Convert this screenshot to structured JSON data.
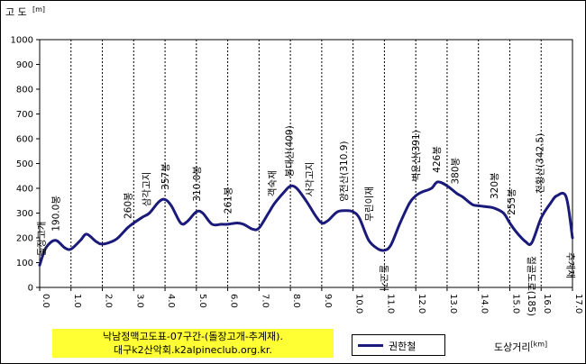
{
  "chart_data": {
    "type": "line",
    "ylabel": "고 도",
    "yunit": "[m]",
    "xlabel": "도상거리",
    "xunit": "[km]",
    "ylim": [
      0,
      1000
    ],
    "xlim": [
      0,
      17
    ],
    "yticks": [
      "0",
      "100",
      "200",
      "300",
      "400",
      "500",
      "600",
      "700",
      "800",
      "900",
      "1000"
    ],
    "xticks": [
      "0.0",
      "1.0",
      "2.0",
      "3.0",
      "4.0",
      "5.0",
      "6.0",
      "7.0",
      "8.0",
      "9.0",
      "10.0",
      "11.0",
      "12.0",
      "13.0",
      "14.0",
      "15.0",
      "16.0",
      "17.0"
    ],
    "grid": "vertical",
    "line_color": "#1a1a7a",
    "series": [
      {
        "name": "권한철",
        "x": [
          0.0,
          0.2,
          0.5,
          0.8,
          1.0,
          1.3,
          1.5,
          1.8,
          2.0,
          2.3,
          2.5,
          2.8,
          3.0,
          3.3,
          3.5,
          3.8,
          4.0,
          4.2,
          4.5,
          4.7,
          5.0,
          5.2,
          5.5,
          5.8,
          6.0,
          6.3,
          6.5,
          6.8,
          7.0,
          7.3,
          7.5,
          7.8,
          8.0,
          8.2,
          8.5,
          8.8,
          9.0,
          9.2,
          9.5,
          9.8,
          10.0,
          10.2,
          10.5,
          10.8,
          11.0,
          11.2,
          11.5,
          11.8,
          12.0,
          12.2,
          12.5,
          12.7,
          13.0,
          13.3,
          13.5,
          13.8,
          14.0,
          14.3,
          14.5,
          14.8,
          15.0,
          15.2,
          15.5,
          15.7,
          16.0,
          16.3,
          16.5,
          16.8,
          17.0
        ],
        "y": [
          90,
          160,
          190,
          160,
          155,
          190,
          215,
          185,
          175,
          185,
          200,
          240,
          260,
          285,
          300,
          345,
          355,
          330,
          260,
          265,
          305,
          300,
          255,
          255,
          255,
          260,
          255,
          235,
          240,
          300,
          340,
          385,
          409,
          400,
          350,
          290,
          260,
          270,
          305,
          310,
          305,
          280,
          190,
          155,
          150,
          170,
          260,
          340,
          370,
          385,
          400,
          426,
          410,
          380,
          365,
          335,
          330,
          325,
          320,
          300,
          260,
          225,
          185,
          180,
          280,
          340,
          370,
          365,
          200
        ]
      }
    ],
    "annotations": [
      {
        "text": "돌장고개",
        "x": 0.05,
        "y": 90
      },
      {
        "text": "190.0봉",
        "x": 0.5,
        "y": 190
      },
      {
        "text": "260봉",
        "x": 2.8,
        "y": 240
      },
      {
        "text": "삼각고지",
        "x": 3.4,
        "y": 290
      },
      {
        "text": "357봉",
        "x": 4.0,
        "y": 357
      },
      {
        "text": "310.0봉",
        "x": 5.0,
        "y": 310
      },
      {
        "text": "261봉",
        "x": 6.0,
        "y": 261
      },
      {
        "text": "객숙재",
        "x": 7.4,
        "y": 330
      },
      {
        "text": "봉대산(409)",
        "x": 7.95,
        "y": 409
      },
      {
        "text": "사각고지",
        "x": 8.6,
        "y": 330
      },
      {
        "text": "양전산(310.9)",
        "x": 9.7,
        "y": 310
      },
      {
        "text": "무린이재",
        "x": 10.5,
        "y": 230
      },
      {
        "text": "돌고개",
        "x": 11.0,
        "y": 150
      },
      {
        "text": "벽운산(391)",
        "x": 12.0,
        "y": 391
      },
      {
        "text": "426봉",
        "x": 12.65,
        "y": 426
      },
      {
        "text": "380봉",
        "x": 13.25,
        "y": 380
      },
      {
        "text": "320봉",
        "x": 14.5,
        "y": 320
      },
      {
        "text": "255봉",
        "x": 15.05,
        "y": 255
      },
      {
        "text": "천황산(342.5)",
        "x": 15.95,
        "y": 342
      },
      {
        "text": "절골도로(185)",
        "x": 15.7,
        "y": 185
      },
      {
        "text": "추계재",
        "x": 16.95,
        "y": 200
      }
    ]
  },
  "caption": {
    "line1": "낙남정맥고도표-07구간-(돌장고개-추계재).",
    "line2": "대구k2산악회.k2alpineclub.org.kr."
  },
  "legend": {
    "label": "권한철"
  }
}
